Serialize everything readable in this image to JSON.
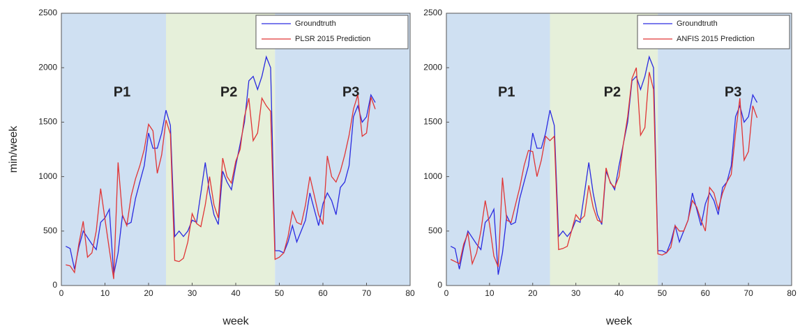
{
  "chart_data": [
    {
      "type": "line",
      "xlabel": "week",
      "ylabel": "min/week",
      "x": [
        1,
        2,
        3,
        4,
        5,
        6,
        7,
        8,
        9,
        10,
        11,
        12,
        13,
        14,
        15,
        16,
        17,
        18,
        19,
        20,
        21,
        22,
        23,
        24,
        25,
        26,
        27,
        28,
        29,
        30,
        31,
        32,
        33,
        34,
        35,
        36,
        37,
        38,
        39,
        40,
        41,
        42,
        43,
        44,
        45,
        46,
        47,
        48,
        49,
        50,
        51,
        52,
        53,
        54,
        55,
        56,
        57,
        58,
        59,
        60,
        61,
        62,
        63,
        64,
        65,
        66,
        67,
        68,
        69,
        70,
        71,
        72
      ],
      "series": [
        {
          "name": "Groundtruth",
          "color": "#2a2ae0",
          "values": [
            360,
            340,
            150,
            350,
            500,
            440,
            380,
            330,
            580,
            620,
            700,
            100,
            300,
            640,
            560,
            580,
            800,
            950,
            1100,
            1400,
            1260,
            1260,
            1400,
            1610,
            1470,
            450,
            500,
            450,
            500,
            600,
            580,
            850,
            1130,
            850,
            650,
            560,
            1050,
            950,
            880,
            1100,
            1300,
            1500,
            1880,
            1920,
            1800,
            1920,
            2100,
            2000,
            320,
            320,
            300,
            400,
            550,
            400,
            500,
            600,
            850,
            700,
            550,
            750,
            850,
            780,
            650,
            900,
            950,
            1100,
            1550,
            1650,
            1500,
            1550,
            1750,
            1680
          ]
        },
        {
          "name": "PLSR 2015 Prediction",
          "color": "#e03535",
          "values": [
            190,
            180,
            120,
            380,
            590,
            260,
            300,
            500,
            890,
            610,
            330,
            60,
            1130,
            650,
            550,
            820,
            980,
            1100,
            1250,
            1480,
            1420,
            1030,
            1200,
            1520,
            1390,
            230,
            220,
            250,
            400,
            660,
            570,
            540,
            740,
            1000,
            740,
            620,
            1170,
            1000,
            940,
            1140,
            1250,
            1550,
            1720,
            1330,
            1400,
            1720,
            1650,
            1600,
            240,
            260,
            300,
            450,
            680,
            580,
            560,
            740,
            1000,
            830,
            650,
            560,
            1190,
            1000,
            950,
            1050,
            1200,
            1380,
            1620,
            1750,
            1370,
            1400,
            1730,
            1620
          ]
        }
      ],
      "regions": [
        {
          "label": "P1",
          "start": 0,
          "end": 24,
          "color": "#cfe0f2"
        },
        {
          "label": "P2",
          "start": 24,
          "end": 49,
          "color": "#e6f0da"
        },
        {
          "label": "P3",
          "start": 49,
          "end": 80,
          "color": "#cfe0f2"
        }
      ],
      "xlim": [
        0,
        80
      ],
      "xticks": [
        0,
        10,
        20,
        30,
        40,
        50,
        60,
        70,
        80
      ],
      "ylim": [
        0,
        2500
      ],
      "yticks": [
        0,
        500,
        1000,
        1500,
        2000,
        2500
      ],
      "legend": "upper right"
    },
    {
      "type": "line",
      "xlabel": "week",
      "x": [
        1,
        2,
        3,
        4,
        5,
        6,
        7,
        8,
        9,
        10,
        11,
        12,
        13,
        14,
        15,
        16,
        17,
        18,
        19,
        20,
        21,
        22,
        23,
        24,
        25,
        26,
        27,
        28,
        29,
        30,
        31,
        32,
        33,
        34,
        35,
        36,
        37,
        38,
        39,
        40,
        41,
        42,
        43,
        44,
        45,
        46,
        47,
        48,
        49,
        50,
        51,
        52,
        53,
        54,
        55,
        56,
        57,
        58,
        59,
        60,
        61,
        62,
        63,
        64,
        65,
        66,
        67,
        68,
        69,
        70,
        71,
        72
      ],
      "series": [
        {
          "name": "Groundtruth",
          "color": "#2a2ae0",
          "values": [
            360,
            340,
            150,
            350,
            500,
            440,
            380,
            330,
            580,
            620,
            700,
            100,
            300,
            640,
            560,
            580,
            800,
            950,
            1100,
            1400,
            1260,
            1260,
            1400,
            1610,
            1470,
            450,
            500,
            450,
            500,
            600,
            580,
            850,
            1130,
            850,
            650,
            560,
            1050,
            950,
            880,
            1100,
            1300,
            1500,
            1880,
            1920,
            1800,
            1920,
            2100,
            2000,
            320,
            320,
            300,
            400,
            550,
            400,
            500,
            600,
            850,
            700,
            550,
            750,
            850,
            780,
            650,
            900,
            950,
            1100,
            1550,
            1650,
            1500,
            1550,
            1750,
            1680
          ]
        },
        {
          "name": "ANFIS 2015 Prediction",
          "color": "#e03535",
          "values": [
            240,
            220,
            200,
            380,
            480,
            200,
            300,
            500,
            780,
            560,
            270,
            170,
            990,
            600,
            580,
            740,
            900,
            1100,
            1240,
            1230,
            1000,
            1150,
            1370,
            1330,
            1370,
            330,
            340,
            360,
            500,
            650,
            600,
            640,
            920,
            720,
            600,
            580,
            1080,
            940,
            900,
            1000,
            1300,
            1550,
            1900,
            2000,
            1380,
            1450,
            1960,
            1800,
            290,
            280,
            300,
            350,
            550,
            500,
            500,
            600,
            780,
            720,
            600,
            500,
            900,
            850,
            700,
            850,
            950,
            1020,
            1400,
            1720,
            1150,
            1230,
            1650,
            1540
          ]
        }
      ],
      "regions": [
        {
          "label": "P1",
          "start": 0,
          "end": 24,
          "color": "#cfe0f2"
        },
        {
          "label": "P2",
          "start": 24,
          "end": 49,
          "color": "#e6f0da"
        },
        {
          "label": "P3",
          "start": 49,
          "end": 80,
          "color": "#cfe0f2"
        }
      ],
      "xlim": [
        0,
        80
      ],
      "xticks": [
        0,
        10,
        20,
        30,
        40,
        50,
        60,
        70,
        80
      ],
      "ylim": [
        0,
        2500
      ],
      "yticks": [
        0,
        500,
        1000,
        1500,
        2000,
        2500
      ],
      "legend": "upper right"
    }
  ]
}
